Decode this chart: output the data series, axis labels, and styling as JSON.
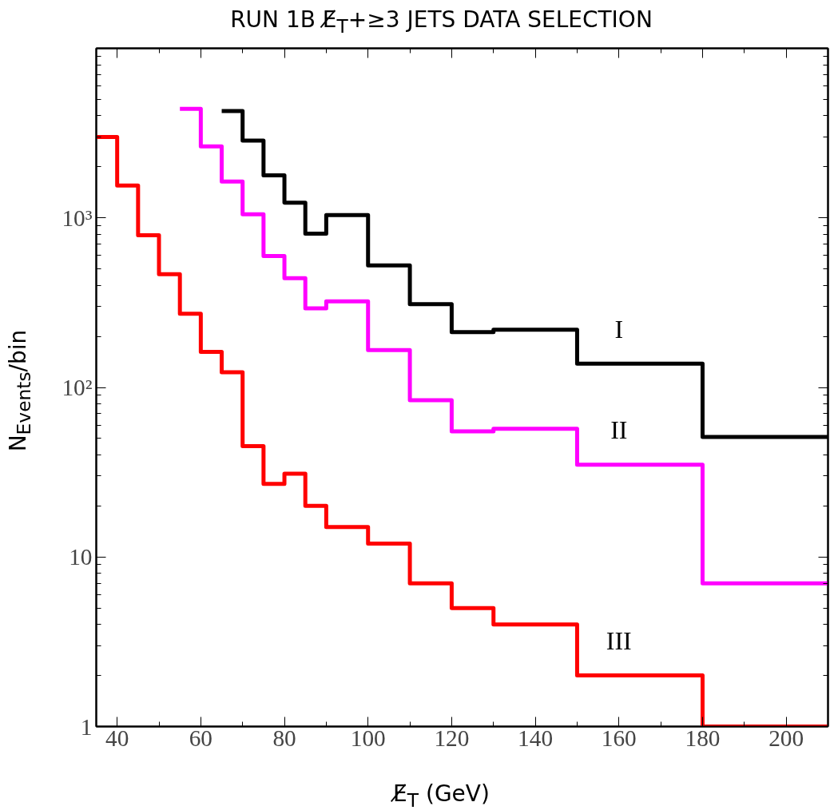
{
  "chart_data": {
    "type": "step",
    "title": "RUN 1B E̸$_{T}$+≥3 JETS DATA SELECTION",
    "xlabel": "E̸$_{T}$ (GeV)",
    "ylabel": "N$_{Events}$/bin",
    "series": [
      {
        "name": "I",
        "color": "#000000",
        "x": [
          65,
          70,
          75,
          80,
          85,
          90,
          100,
          110,
          120,
          130,
          150,
          180,
          210
        ],
        "values": [
          4270,
          2860,
          1780,
          1230,
          807,
          1040,
          525,
          310,
          212,
          219,
          138,
          51,
          51
        ]
      },
      {
        "name": "II",
        "color": "#ff00ff",
        "x": [
          55,
          60,
          65,
          70,
          75,
          80,
          85,
          90,
          100,
          110,
          120,
          130,
          150,
          180,
          210
        ],
        "values": [
          4400,
          2640,
          1640,
          1050,
          596,
          441,
          293,
          322,
          166,
          84,
          55,
          57,
          35,
          7,
          7
        ]
      },
      {
        "name": "III",
        "color": "#ff0000",
        "x": [
          35,
          40,
          45,
          50,
          55,
          60,
          65,
          70,
          75,
          80,
          85,
          90,
          100,
          110,
          120,
          130,
          150,
          180,
          210
        ],
        "values": [
          3000,
          1550,
          790,
          465,
          272,
          162,
          123,
          45,
          27,
          31,
          20,
          15,
          12,
          7,
          5,
          4,
          2,
          1,
          1
        ]
      }
    ],
    "xlim": [
      35,
      210
    ],
    "xticks": [
      40,
      60,
      80,
      100,
      120,
      140,
      160,
      180,
      200
    ],
    "ylim": [
      1,
      10000
    ],
    "yticks": [
      1,
      10,
      {
        "value": 100,
        "label": "10²"
      },
      {
        "value": 1000,
        "label": "10³"
      },
      {
        "value": 10000,
        "label": null
      }
    ],
    "log": "y",
    "grid": false,
    "line_style": "solid",
    "marker": "none"
  }
}
